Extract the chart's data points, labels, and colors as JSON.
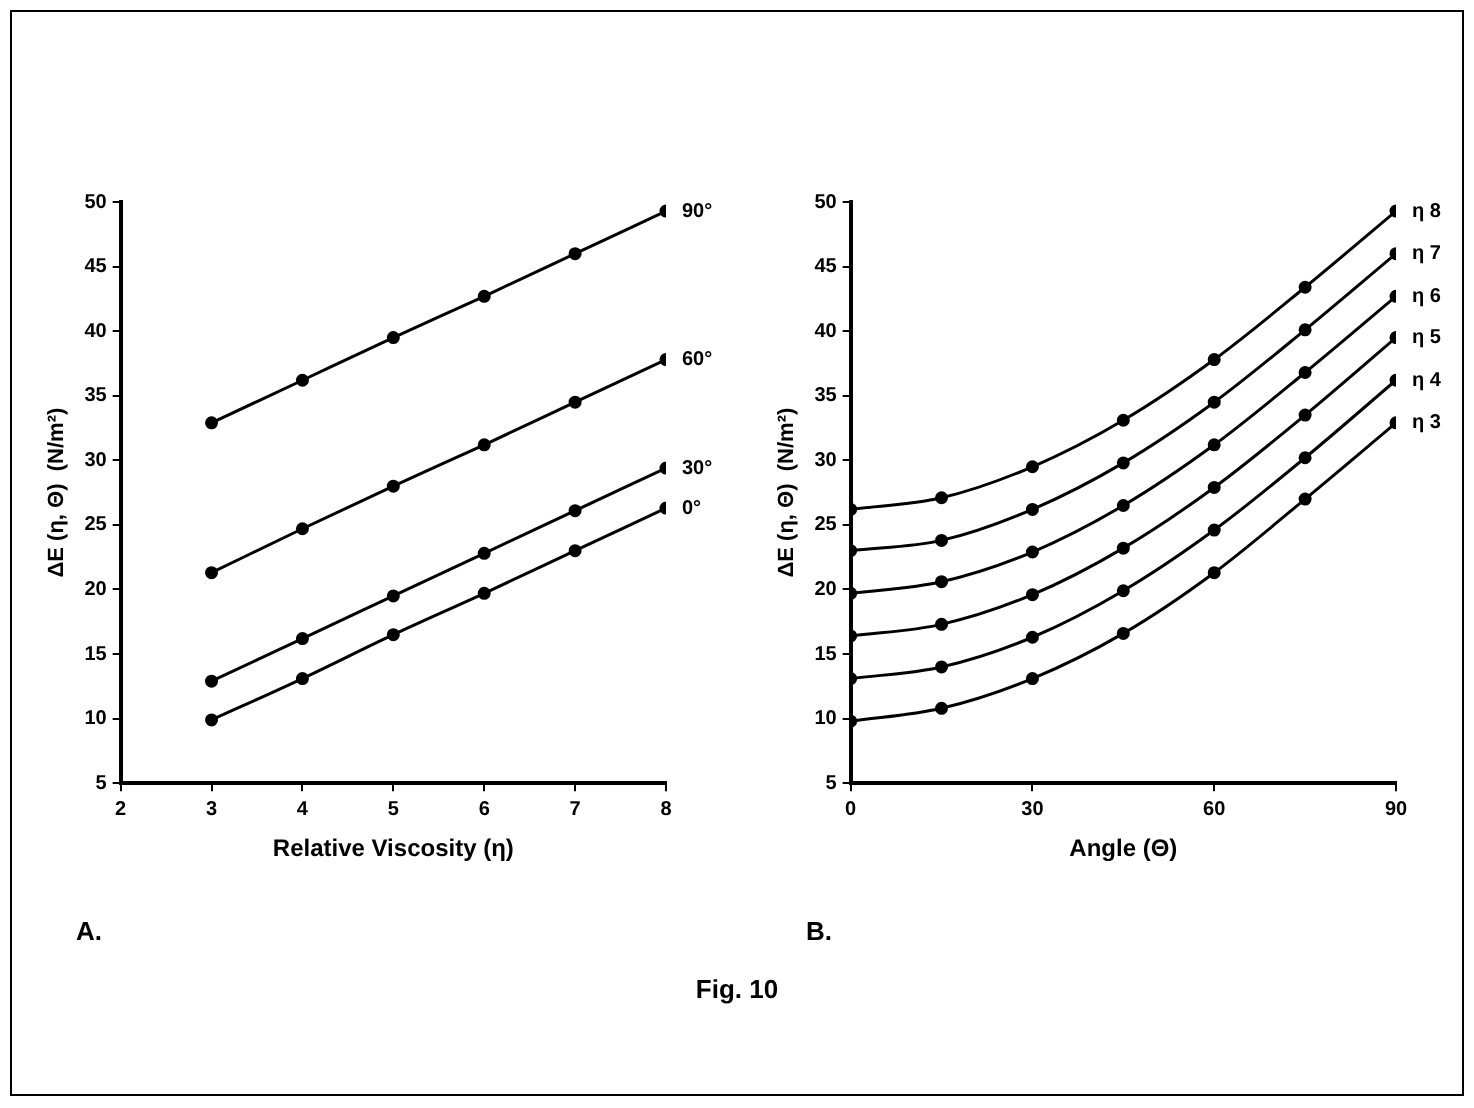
{
  "chart_data": [
    {
      "type": "line",
      "xlabel": "Relative Viscosity (η)",
      "ylabel": "ΔE (η, Θ)  (N/m²)",
      "xlim": [
        2,
        8
      ],
      "xticks": [
        2,
        3,
        4,
        5,
        6,
        7,
        8
      ],
      "ylim": [
        5,
        50
      ],
      "yticks": [
        5,
        10,
        15,
        20,
        25,
        30,
        35,
        40,
        45,
        50
      ],
      "grid": false,
      "legend": false,
      "marker": "circle",
      "line_style": "solid",
      "annotations": [
        "A."
      ],
      "x": [
        3,
        4,
        5,
        6,
        7,
        8
      ],
      "series": [
        {
          "name": "0°",
          "color": "#000000",
          "values": [
            9.9,
            13.1,
            16.5,
            19.7,
            23.0,
            26.3
          ]
        },
        {
          "name": "30°",
          "color": "#000000",
          "values": [
            12.9,
            16.2,
            19.5,
            22.8,
            26.1,
            29.4
          ]
        },
        {
          "name": "60°",
          "color": "#000000",
          "values": [
            21.3,
            24.7,
            28.0,
            31.2,
            34.5,
            37.8
          ]
        },
        {
          "name": "90°",
          "color": "#000000",
          "values": [
            32.9,
            36.2,
            39.5,
            42.7,
            46.0,
            49.3
          ]
        }
      ]
    },
    {
      "type": "line",
      "xlabel": "Angle (Θ)",
      "ylabel": "ΔE (η, Θ)  (N/m²)",
      "xlim": [
        0,
        90
      ],
      "xticks": [
        0,
        30,
        60,
        90
      ],
      "ylim": [
        5,
        50
      ],
      "yticks": [
        5,
        10,
        15,
        20,
        25,
        30,
        35,
        40,
        45,
        50
      ],
      "grid": false,
      "legend": false,
      "marker": "circle",
      "line_style": "solid",
      "annotations": [
        "B.",
        "Fig. 10"
      ],
      "x": [
        0,
        15,
        30,
        45,
        60,
        75,
        90
      ],
      "series": [
        {
          "name": "η 3",
          "color": "#000000",
          "values": [
            9.8,
            10.8,
            13.1,
            16.6,
            21.3,
            27.0,
            32.9
          ]
        },
        {
          "name": "η 4",
          "color": "#000000",
          "values": [
            13.1,
            14.0,
            16.3,
            19.9,
            24.6,
            30.2,
            36.2
          ]
        },
        {
          "name": "η 5",
          "color": "#000000",
          "values": [
            16.4,
            17.3,
            19.6,
            23.2,
            27.9,
            33.5,
            39.5
          ]
        },
        {
          "name": "η 6",
          "color": "#000000",
          "values": [
            19.7,
            20.6,
            22.9,
            26.5,
            31.2,
            36.8,
            42.7
          ]
        },
        {
          "name": "η 7",
          "color": "#000000",
          "values": [
            23.0,
            23.8,
            26.2,
            29.8,
            34.5,
            40.1,
            46.0
          ]
        },
        {
          "name": "η 8",
          "color": "#000000",
          "values": [
            26.2,
            27.1,
            29.5,
            33.1,
            37.8,
            43.4,
            49.3
          ]
        }
      ]
    }
  ]
}
